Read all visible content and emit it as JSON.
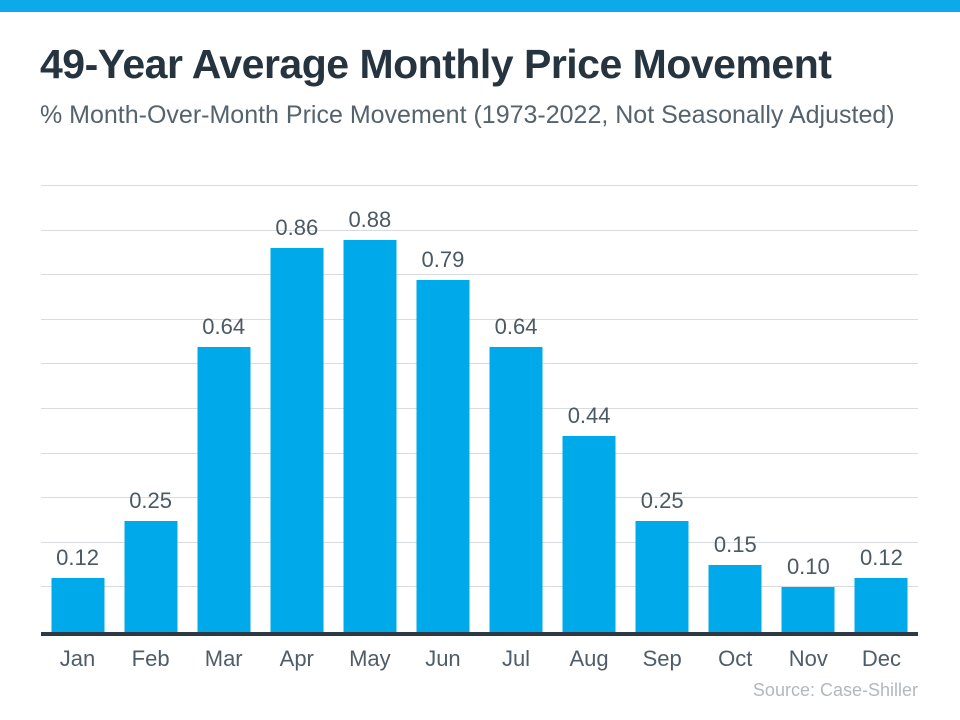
{
  "colors": {
    "accent_bar": "#0da9ea",
    "bar_fill": "#00a9ea",
    "title_text": "#263440",
    "subtitle_text": "#55636d",
    "value_label_text": "#4b5963",
    "axis_baseline": "#2d3a44",
    "gridline": "#d9dcde",
    "source_text": "#b2b8bd"
  },
  "header": {
    "title": "49-Year Average Monthly Price Movement",
    "subtitle": "% Month-Over-Month Price Movement (1973-2022, Not Seasonally Adjusted)"
  },
  "source": "Source: Case-Shiller",
  "chart_data": {
    "type": "bar",
    "title": "49-Year Average Monthly Price Movement",
    "subtitle": "% Month-Over-Month Price Movement (1973-2022, Not Seasonally Adjusted)",
    "categories": [
      "Jan",
      "Feb",
      "Mar",
      "Apr",
      "May",
      "Jun",
      "Jul",
      "Aug",
      "Sep",
      "Oct",
      "Nov",
      "Dec"
    ],
    "values": [
      0.12,
      0.25,
      0.64,
      0.86,
      0.88,
      0.79,
      0.64,
      0.44,
      0.25,
      0.15,
      0.1,
      0.12
    ],
    "value_labels": [
      "0.12",
      "0.25",
      "0.64",
      "0.86",
      "0.88",
      "0.79",
      "0.64",
      "0.44",
      "0.25",
      "0.15",
      "0.10",
      "0.12"
    ],
    "xlabel": "",
    "ylabel": "% Month-Over-Month Price Movement",
    "ylim": [
      0,
      1.0
    ],
    "gridline_step": 0.1,
    "grid": "on",
    "legend": "none",
    "bar_color": "#00a9ea",
    "source": "Source: Case-Shiller"
  }
}
